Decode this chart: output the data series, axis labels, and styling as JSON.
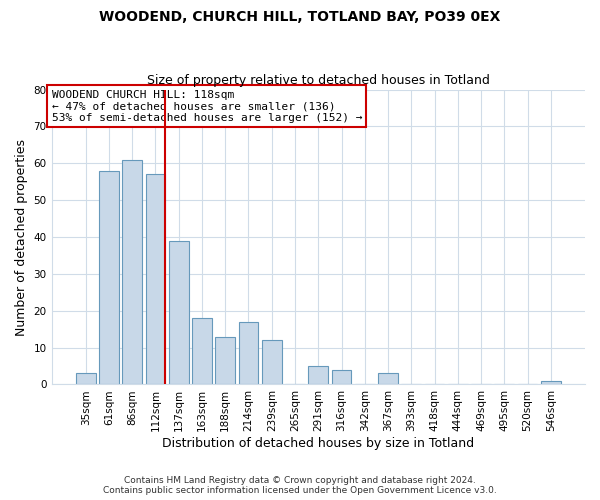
{
  "title": "WOODEND, CHURCH HILL, TOTLAND BAY, PO39 0EX",
  "subtitle": "Size of property relative to detached houses in Totland",
  "xlabel": "Distribution of detached houses by size in Totland",
  "ylabel": "Number of detached properties",
  "bar_labels": [
    "35sqm",
    "61sqm",
    "86sqm",
    "112sqm",
    "137sqm",
    "163sqm",
    "188sqm",
    "214sqm",
    "239sqm",
    "265sqm",
    "291sqm",
    "316sqm",
    "342sqm",
    "367sqm",
    "393sqm",
    "418sqm",
    "444sqm",
    "469sqm",
    "495sqm",
    "520sqm",
    "546sqm"
  ],
  "bar_values": [
    3,
    58,
    61,
    57,
    39,
    18,
    13,
    17,
    12,
    0,
    5,
    4,
    0,
    3,
    0,
    0,
    0,
    0,
    0,
    0,
    1
  ],
  "bar_color": "#c8d8e8",
  "bar_edge_color": "#6699bb",
  "vline_x_index": 3,
  "vline_color": "#cc0000",
  "ylim": [
    0,
    80
  ],
  "yticks": [
    0,
    10,
    20,
    30,
    40,
    50,
    60,
    70,
    80
  ],
  "annotation_title": "WOODEND CHURCH HILL: 118sqm",
  "annotation_line1": "← 47% of detached houses are smaller (136)",
  "annotation_line2": "53% of semi-detached houses are larger (152) →",
  "annotation_box_color": "#ffffff",
  "annotation_box_edge": "#cc0000",
  "footer_line1": "Contains HM Land Registry data © Crown copyright and database right 2024.",
  "footer_line2": "Contains public sector information licensed under the Open Government Licence v3.0.",
  "background_color": "#ffffff",
  "grid_color": "#d0dce8"
}
